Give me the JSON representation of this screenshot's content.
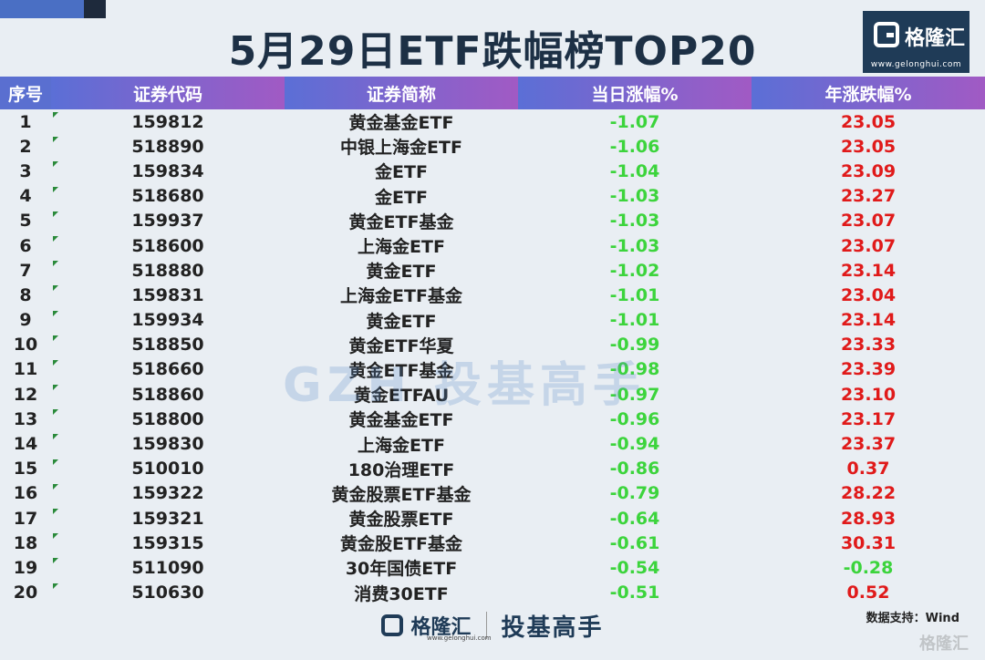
{
  "header": {
    "title": "5月29日ETF跌幅榜TOP20"
  },
  "logo": {
    "name": "格隆汇",
    "url": "www.gelonghui.com"
  },
  "table": {
    "columns": [
      "序号",
      "证券代码",
      "证券简称",
      "当日涨幅%",
      "年涨跌幅%"
    ],
    "rows": [
      {
        "idx": "1",
        "code": "159812",
        "name": "黄金基金ETF",
        "day": "-1.07",
        "year": "23.05"
      },
      {
        "idx": "2",
        "code": "518890",
        "name": "中银上海金ETF",
        "day": "-1.06",
        "year": "23.05"
      },
      {
        "idx": "3",
        "code": "159834",
        "name": "金ETF",
        "day": "-1.04",
        "year": "23.09"
      },
      {
        "idx": "4",
        "code": "518680",
        "name": "金ETF",
        "day": "-1.03",
        "year": "23.27"
      },
      {
        "idx": "5",
        "code": "159937",
        "name": "黄金ETF基金",
        "day": "-1.03",
        "year": "23.07"
      },
      {
        "idx": "6",
        "code": "518600",
        "name": "上海金ETF",
        "day": "-1.03",
        "year": "23.07"
      },
      {
        "idx": "7",
        "code": "518880",
        "name": "黄金ETF",
        "day": "-1.02",
        "year": "23.14"
      },
      {
        "idx": "8",
        "code": "159831",
        "name": "上海金ETF基金",
        "day": "-1.01",
        "year": "23.04"
      },
      {
        "idx": "9",
        "code": "159934",
        "name": "黄金ETF",
        "day": "-1.01",
        "year": "23.14"
      },
      {
        "idx": "10",
        "code": "518850",
        "name": "黄金ETF华夏",
        "day": "-0.99",
        "year": "23.33"
      },
      {
        "idx": "11",
        "code": "518660",
        "name": "黄金ETF基金",
        "day": "-0.98",
        "year": "23.39"
      },
      {
        "idx": "12",
        "code": "518860",
        "name": "黄金ETFAU",
        "day": "-0.97",
        "year": "23.10"
      },
      {
        "idx": "13",
        "code": "518800",
        "name": "黄金基金ETF",
        "day": "-0.96",
        "year": "23.17"
      },
      {
        "idx": "14",
        "code": "159830",
        "name": "上海金ETF",
        "day": "-0.94",
        "year": "23.37"
      },
      {
        "idx": "15",
        "code": "510010",
        "name": "180治理ETF",
        "day": "-0.86",
        "year": "0.37"
      },
      {
        "idx": "16",
        "code": "159322",
        "name": "黄金股票ETF基金",
        "day": "-0.79",
        "year": "28.22"
      },
      {
        "idx": "17",
        "code": "159321",
        "name": "黄金股票ETF",
        "day": "-0.64",
        "year": "28.93"
      },
      {
        "idx": "18",
        "code": "159315",
        "name": "黄金股ETF基金",
        "day": "-0.61",
        "year": "30.31"
      },
      {
        "idx": "19",
        "code": "511090",
        "name": "30年国债ETF",
        "day": "-0.54",
        "year": "-0.28"
      },
      {
        "idx": "20",
        "code": "510630",
        "name": "消费30ETF",
        "day": "-0.51",
        "year": "0.52"
      }
    ]
  },
  "watermark": "GZH 投基高手",
  "source": "数据支持：Wind",
  "footer": {
    "brand": "格隆汇",
    "url": "www.gelonghui.com",
    "slogan": "投基高手"
  },
  "corner": "格隆汇",
  "colors": {
    "up": "#e01a1a",
    "down": "#3cd43c",
    "header_start": "#5b6fd6",
    "header_end": "#a15ac4",
    "title": "#1d3045"
  }
}
